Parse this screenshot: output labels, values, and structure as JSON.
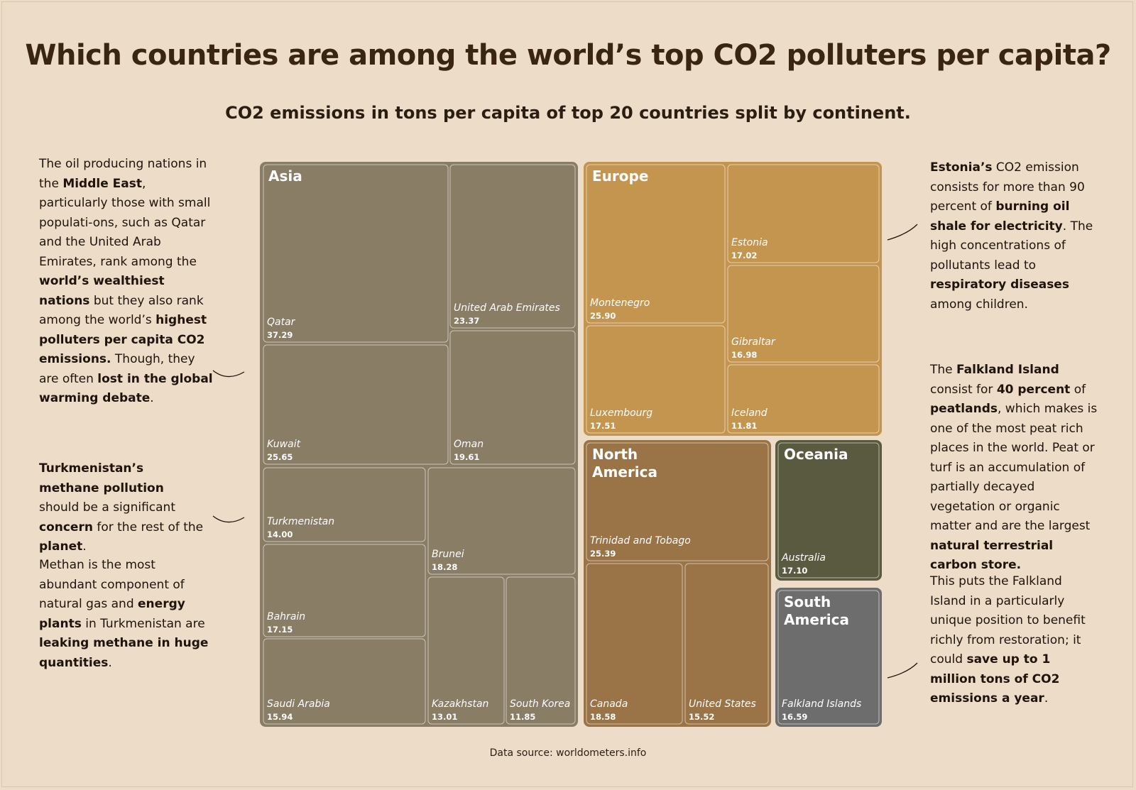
{
  "title": "Which countries are among the world’s top CO2 polluters per capita?",
  "subtitle": "CO2 emissions in tons per capita of top 20 countries split by continent.",
  "source": "Data source: worldometers.info",
  "notes": {
    "middle_east": [
      {
        "t": "The oil producing nations in the "
      },
      {
        "t": "Middle East",
        "b": true
      },
      {
        "t": ", particularly those with small populati-ons, such as Qatar and the United Arab Emirates, rank among the "
      },
      {
        "t": "world’s wealthiest nations",
        "b": true
      },
      {
        "t": " but they also rank among the world’s "
      },
      {
        "t": "highest polluters per capita CO2 emissions.",
        "b": true
      },
      {
        "t": " Though, they are often "
      },
      {
        "t": "lost in the global warming debate",
        "b": true
      },
      {
        "t": "."
      }
    ],
    "turkmenistan": [
      {
        "t": "Turkmenistan’s  methane pollution",
        "b": true
      },
      {
        "t": " should be a significant "
      },
      {
        "t": "concern",
        "b": true
      },
      {
        "t": " for the rest of the "
      },
      {
        "t": "planet",
        "b": true
      },
      {
        "t": "."
      }
    ],
    "methane": [
      {
        "t": "Methan is the most abundant component of natural gas and "
      },
      {
        "t": "energy plants",
        "b": true
      },
      {
        "t": " in Turkmenistan are "
      },
      {
        "t": "leaking methane in huge quantities",
        "b": true
      },
      {
        "t": "."
      }
    ],
    "estonia": [
      {
        "t": "Estonia’s",
        "b": true
      },
      {
        "t": " CO2 emission consists for more than 90 percent of "
      },
      {
        "t": "burning oil shale for electricity",
        "b": true
      },
      {
        "t": ". The high concentrations of pollutants lead to "
      },
      {
        "t": "respiratory diseases",
        "b": true
      },
      {
        "t": " among children."
      }
    ],
    "falkland": [
      {
        "t": "The "
      },
      {
        "t": "Falkland Island",
        "b": true
      },
      {
        "t": " consist for "
      },
      {
        "t": "40 percent",
        "b": true
      },
      {
        "t": " of "
      },
      {
        "t": "peatlands",
        "b": true
      },
      {
        "t": ", which makes is one of the most peat rich places in the world. Peat or turf is an accumulation of partially decayed vegetation or organic matter and are the largest "
      },
      {
        "t": "natural terrestrial carbon store.",
        "b": true
      }
    ],
    "restoration": [
      {
        "t": "This puts the Falkland Island in a particularly unique position to benefit richly from restoration; it could "
      },
      {
        "t": "save up to 1 million tons of CO2 emissions a year",
        "b": true
      },
      {
        "t": "."
      }
    ]
  },
  "colors": {
    "Asia": "#8a7d66",
    "Europe": "#c4954f",
    "North America": "#9a7446",
    "Oceania": "#5a5a40",
    "South America": "#6d6d6d",
    "background": "#ecdcc8"
  },
  "chart_data": {
    "type": "treemap",
    "title": "Which countries are among the world’s top CO2 polluters per capita?",
    "subtitle": "CO2 emissions in tons per capita of top 20 countries split by continent.",
    "unit": "tons per capita",
    "groups": [
      {
        "name": "Asia",
        "countries": [
          {
            "name": "Qatar",
            "value": 37.29
          },
          {
            "name": "United Arab Emirates",
            "value": 23.37
          },
          {
            "name": "Kuwait",
            "value": 25.65
          },
          {
            "name": "Oman",
            "value": 19.61
          },
          {
            "name": "Turkmenistan",
            "value": 14.0
          },
          {
            "name": "Brunei",
            "value": 18.28
          },
          {
            "name": "Bahrain",
            "value": 17.15
          },
          {
            "name": "Saudi Arabia",
            "value": 15.94
          },
          {
            "name": "Kazakhstan",
            "value": 13.01
          },
          {
            "name": "South Korea",
            "value": 11.85
          }
        ]
      },
      {
        "name": "Europe",
        "countries": [
          {
            "name": "Montenegro",
            "value": 25.9
          },
          {
            "name": "Estonia",
            "value": 17.02
          },
          {
            "name": "Gibraltar",
            "value": 16.98
          },
          {
            "name": "Luxembourg",
            "value": 17.51
          },
          {
            "name": "Iceland",
            "value": 11.81
          }
        ]
      },
      {
        "name": "North America",
        "countries": [
          {
            "name": "Trinidad and Tobago",
            "value": 25.39
          },
          {
            "name": "Canada",
            "value": 18.58
          },
          {
            "name": "United States",
            "value": 15.52
          }
        ]
      },
      {
        "name": "Oceania",
        "countries": [
          {
            "name": "Australia",
            "value": 17.1
          }
        ]
      },
      {
        "name": "South America",
        "countries": [
          {
            "name": "Falkland Islands",
            "value": 16.59
          }
        ]
      }
    ]
  }
}
